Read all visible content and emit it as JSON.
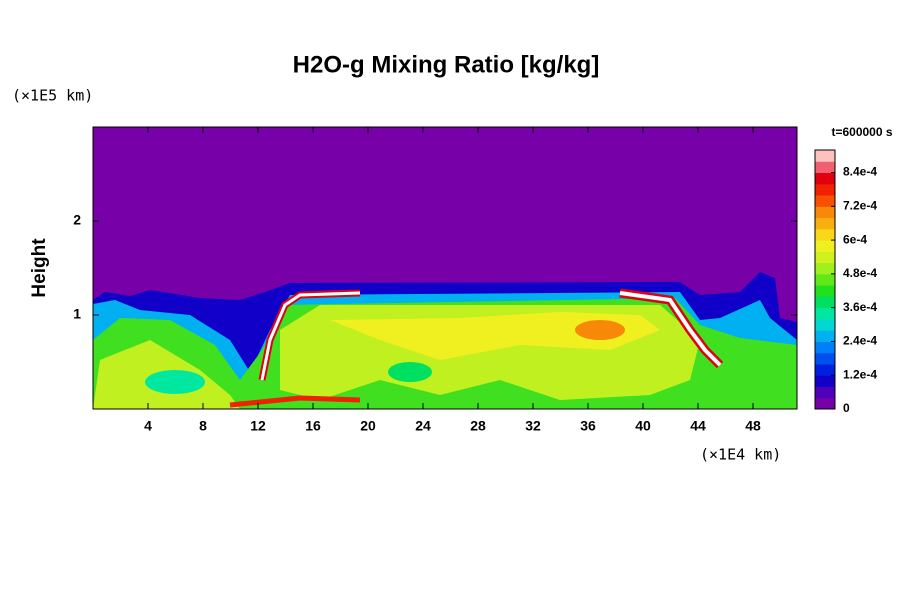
{
  "chart_data": {
    "type": "field",
    "title": "H2O-g Mixing Ratio [kg/kg]",
    "y_label": "Height",
    "y_unit": "(×1E5 km)",
    "x_unit": "(×1E4 km)",
    "time_label": "t=600000 s",
    "xlim": [
      0,
      51.2
    ],
    "xticks": [
      4,
      8,
      12,
      16,
      20,
      24,
      28,
      32,
      36,
      40,
      44,
      48
    ],
    "ylim": [
      0,
      3
    ],
    "yticks": [
      1,
      2
    ],
    "colorbar_lim": [
      0,
      0.00092
    ],
    "colorbar_ticks": [
      0,
      {
        "value": 0.00012,
        "label": "1.2e-4"
      },
      {
        "value": 0.00024,
        "label": "2.4e-4"
      },
      {
        "value": 0.00036,
        "label": "3.6e-4"
      },
      {
        "value": 0.00048,
        "label": "4.8e-4"
      },
      {
        "value": 0.0006,
        "label": "6e-4"
      },
      {
        "value": 0.00072,
        "label": "7.2e-4"
      },
      {
        "value": 0.00084,
        "label": "8.4e-4"
      }
    ],
    "colormap": [
      "#7800a8",
      "#5000b8",
      "#1000c8",
      "#0020e0",
      "#0050f0",
      "#0080f8",
      "#00b0f0",
      "#00d8d0",
      "#00e8a0",
      "#00e060",
      "#20e020",
      "#60e818",
      "#a0f020",
      "#d0f020",
      "#f0f020",
      "#f8d818",
      "#f8b010",
      "#f88808",
      "#f85000",
      "#f02000",
      "#e00010",
      "#f06070",
      "#ffc0c0"
    ]
  }
}
